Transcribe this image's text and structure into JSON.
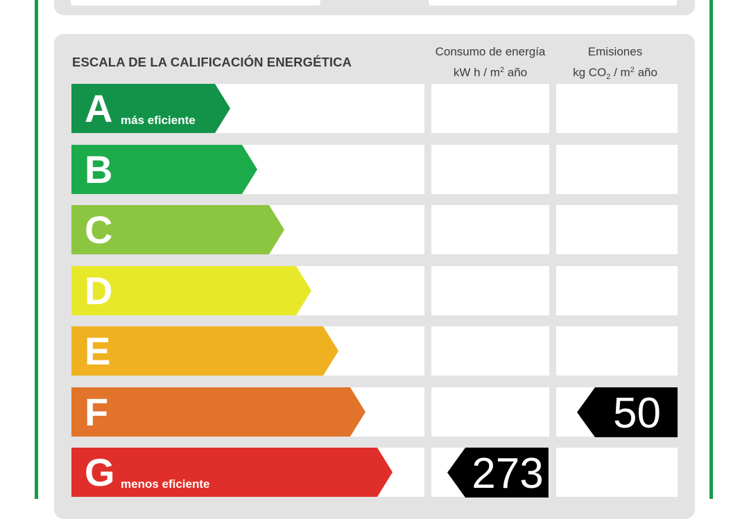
{
  "header": {
    "left_text": "",
    "right_text": ""
  },
  "scale": {
    "title": "ESCALA DE LA CALIFICACIÓN ENERGÉTICA",
    "energy_col": {
      "line1": "Consumo de energía",
      "unit_pre": "kW h  / m",
      "unit_sup": "2",
      "unit_post": " año"
    },
    "emissions_col": {
      "line1": "Emisiones",
      "unit_pre": "kg CO",
      "unit_sub": "2",
      "unit_mid": "  / m",
      "unit_sup": "2",
      "unit_post": " año"
    }
  },
  "grades": [
    {
      "letter": "A",
      "subtitle": "más eficiente",
      "color": "#13934a"
    },
    {
      "letter": "B",
      "subtitle": "",
      "color": "#1cab4b"
    },
    {
      "letter": "C",
      "subtitle": "",
      "color": "#8cc540"
    },
    {
      "letter": "D",
      "subtitle": "",
      "color": "#e8e82a"
    },
    {
      "letter": "E",
      "subtitle": "",
      "color": "#f0b120"
    },
    {
      "letter": "F",
      "subtitle": "",
      "color": "#e2732a"
    },
    {
      "letter": "G",
      "subtitle": "menos eficiente",
      "color": "#e02f2a"
    }
  ],
  "ratings": {
    "energy": {
      "value": "273",
      "grade": "G"
    },
    "emissions": {
      "value": "50",
      "grade": "F"
    }
  }
}
